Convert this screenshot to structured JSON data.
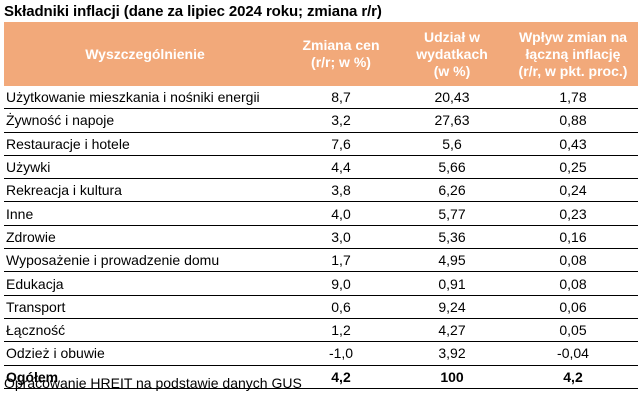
{
  "title": "Składniki inflacji (dane za lipiec 2024 roku; zmiana r/r)",
  "table": {
    "header": {
      "col1": "Wyszczególnienie",
      "col2": [
        "Zmiana cen",
        "(r/r; w %)"
      ],
      "col3": [
        "Udział w",
        "wydatkach",
        "(w %)"
      ],
      "col4": [
        "Wpływ zmian na",
        "łączną inflację",
        "(r/r, w pkt. proc.)"
      ]
    },
    "rows": [
      {
        "name": "Użytkowanie mieszkania i nośniki energii",
        "change": "8,7",
        "share": "20,43",
        "impact": "1,78"
      },
      {
        "name": "Żywność i napoje",
        "change": "3,2",
        "share": "27,63",
        "impact": "0,88"
      },
      {
        "name": "Restauracje i hotele",
        "change": "7,6",
        "share": "5,6",
        "impact": "0,43"
      },
      {
        "name": "Używki",
        "change": "4,4",
        "share": "5,66",
        "impact": "0,25"
      },
      {
        "name": "Rekreacja i kultura",
        "change": "3,8",
        "share": "6,26",
        "impact": "0,24"
      },
      {
        "name": "Inne",
        "change": "4,0",
        "share": "5,77",
        "impact": "0,23"
      },
      {
        "name": "Zdrowie",
        "change": "3,0",
        "share": "5,36",
        "impact": "0,16"
      },
      {
        "name": "Wyposażenie i prowadzenie domu",
        "change": "1,7",
        "share": "4,95",
        "impact": "0,08"
      },
      {
        "name": "Edukacja",
        "change": "9,0",
        "share": "0,91",
        "impact": "0,08"
      },
      {
        "name": "Transport",
        "change": "0,6",
        "share": "9,24",
        "impact": "0,06"
      },
      {
        "name": "Łączność",
        "change": "1,2",
        "share": "4,27",
        "impact": "0,05"
      },
      {
        "name": "Odzież i obuwie",
        "change": "-1,0",
        "share": "3,92",
        "impact": "-0,04"
      }
    ],
    "total": {
      "name": "Ogółem",
      "change": "4,2",
      "share": "100",
      "impact": "4,2"
    }
  },
  "footnote": "Opracowanie HREIT na podstawie danych GUS",
  "colors": {
    "header_bg": "#f2a97a",
    "header_text": "#ffffff",
    "text": "#000000"
  }
}
